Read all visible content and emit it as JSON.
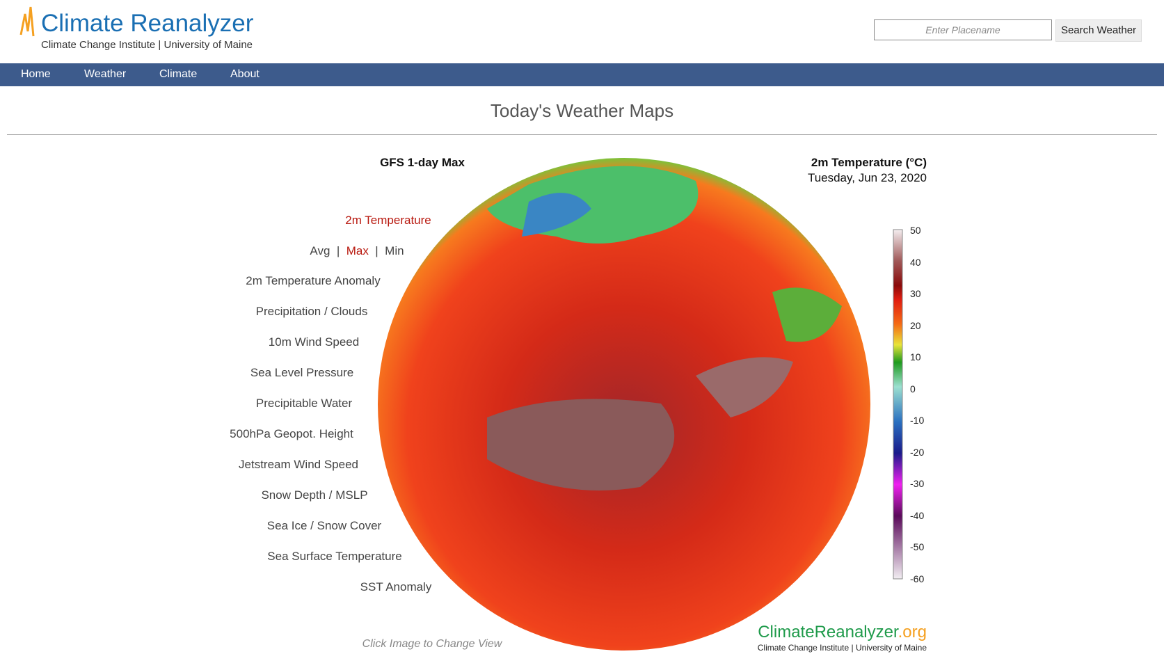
{
  "header": {
    "logo": "Climate Reanalyzer",
    "subtitle": "Climate Change Institute | University of Maine",
    "search_placeholder": "Enter Placename",
    "search_button": "Search Weather"
  },
  "nav": [
    "Home",
    "Weather",
    "Climate",
    "About"
  ],
  "page_title": "Today's Weather Maps",
  "map": {
    "model": "GFS 1-day Max",
    "variable": "2m Temperature (°C)",
    "date": "Tuesday, Jun 23, 2020",
    "hint": "Click Image to Change View",
    "brand": "ClimateReanalyzer",
    "brand_suffix": ".org",
    "brand_subtitle": "Climate Change Institute | University of Maine"
  },
  "menu": {
    "selected": "2m Temperature",
    "stats": [
      "Avg",
      "Max",
      "Min"
    ],
    "items": [
      "2m Temperature Anomaly",
      "Precipitation / Clouds",
      "10m Wind Speed",
      "Sea Level Pressure",
      "Precipitable Water",
      "500hPa Geopot. Height",
      "Jetstream Wind Speed",
      "Snow Depth / MSLP",
      "Sea Ice / Snow Cover",
      "Sea Surface Temperature",
      "SST Anomaly"
    ]
  },
  "colorbar": {
    "ticks": [
      50,
      40,
      30,
      20,
      10,
      0,
      -10,
      -20,
      -30,
      -40,
      -50,
      -60
    ]
  }
}
